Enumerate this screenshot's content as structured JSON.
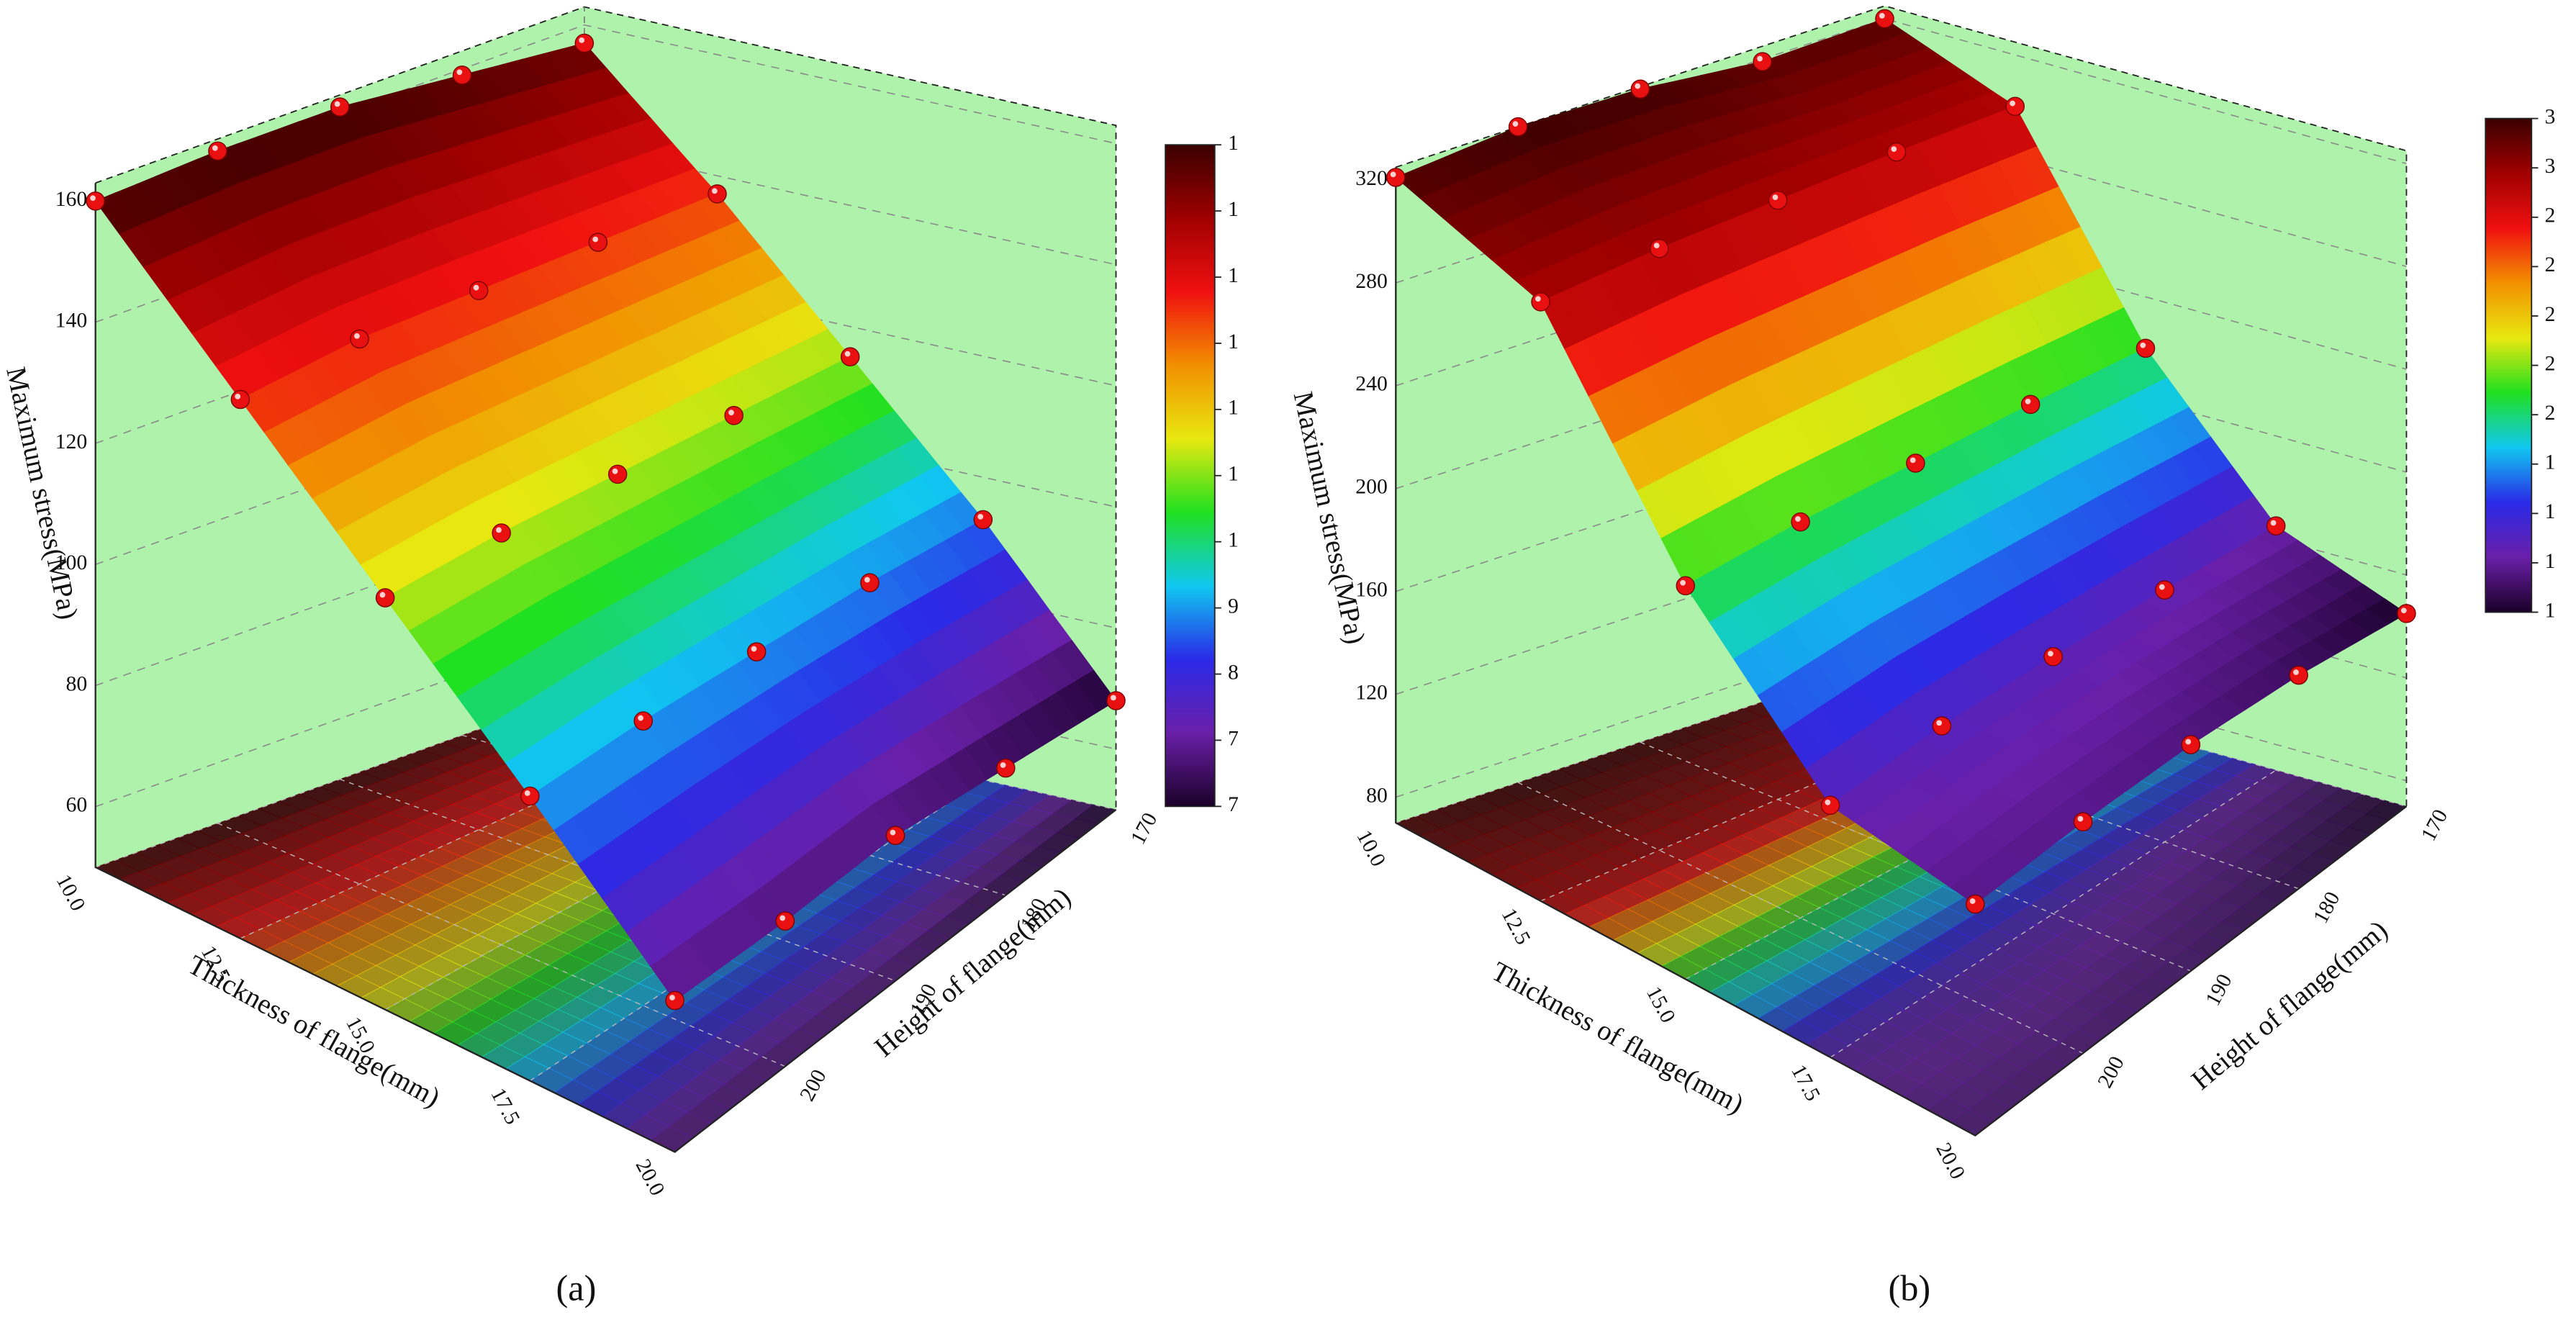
{
  "chart_data": [
    {
      "type": "surface3d",
      "caption": "(a)",
      "zlabel": "Maximum stress(MPa)",
      "xlabel": "Thickness of flange(mm)",
      "ylabel": "Height of flange(mm)",
      "x": [
        10,
        12.5,
        15,
        17.5,
        20
      ],
      "y": [
        170,
        180,
        190,
        200,
        210
      ],
      "z": [
        [
          157,
          159,
          161,
          161,
          160
        ],
        [
          137,
          138,
          139,
          140,
          139
        ],
        [
          115,
          116,
          117,
          118,
          118
        ],
        [
          93,
          95,
          96,
          97,
          97
        ],
        [
          68,
          71,
          74,
          74,
          75
        ]
      ],
      "xticks": [
        {
          "value": 10,
          "label": "10.0"
        },
        12.5,
        {
          "value": 15,
          "label": "15.0"
        },
        17.5,
        {
          "value": 20,
          "label": "20.0"
        }
      ],
      "yticks": [
        170,
        180,
        190,
        200
      ],
      "zlim": [
        50,
        163
      ],
      "zticks": [
        60,
        80,
        100,
        120,
        140,
        160
      ],
      "colormap": [
        "#1a0028",
        "#6a1fa8",
        "#2a2ae8",
        "#10c8f0",
        "#20e020",
        "#e8e810",
        "#f29000",
        "#f01010",
        "#a00000",
        "#3a0000"
      ],
      "colorbar_labels": [
        "1",
        "1",
        "1",
        "1",
        "1",
        "1",
        "1",
        "9",
        "8",
        "7",
        "7"
      ],
      "wall_color": "#aef2ab",
      "point_color": "#e81010"
    },
    {
      "type": "surface3d",
      "caption": "(b)",
      "zlabel": "Maximum stress(MPa)",
      "xlabel": "Thickness of flange(mm)",
      "ylabel": "Height of flange(mm)",
      "x": [
        10,
        12.5,
        15,
        17.5,
        20
      ],
      "y": [
        170,
        180,
        190,
        200,
        210
      ],
      "z": [
        [
          320,
          319,
          324,
          325,
          321
        ],
        [
          300,
          302,
          303,
          304,
          303
        ],
        [
          220,
          222,
          223,
          224,
          223
        ],
        [
          165,
          168,
          170,
          171,
          168
        ],
        [
          145,
          153,
          158,
          160,
          160
        ]
      ],
      "xticks": [
        {
          "value": 10,
          "label": "10.0"
        },
        12.5,
        {
          "value": 15,
          "label": "15.0"
        },
        17.5,
        {
          "value": 20,
          "label": "20.0"
        }
      ],
      "yticks": [
        170,
        180,
        190,
        200
      ],
      "zlim": [
        70,
        325
      ],
      "zticks": [
        80,
        120,
        160,
        200,
        240,
        280,
        320
      ],
      "colormap": [
        "#1a0028",
        "#6a1fa8",
        "#2a2ae8",
        "#10c8f0",
        "#20e020",
        "#e8e810",
        "#f29000",
        "#f01010",
        "#a00000",
        "#3a0000"
      ],
      "colorbar_labels": [
        "3",
        "3",
        "2",
        "2",
        "2",
        "2",
        "2",
        "1",
        "1",
        "1",
        "1"
      ],
      "wall_color": "#aef2ab",
      "point_color": "#e81010"
    }
  ]
}
